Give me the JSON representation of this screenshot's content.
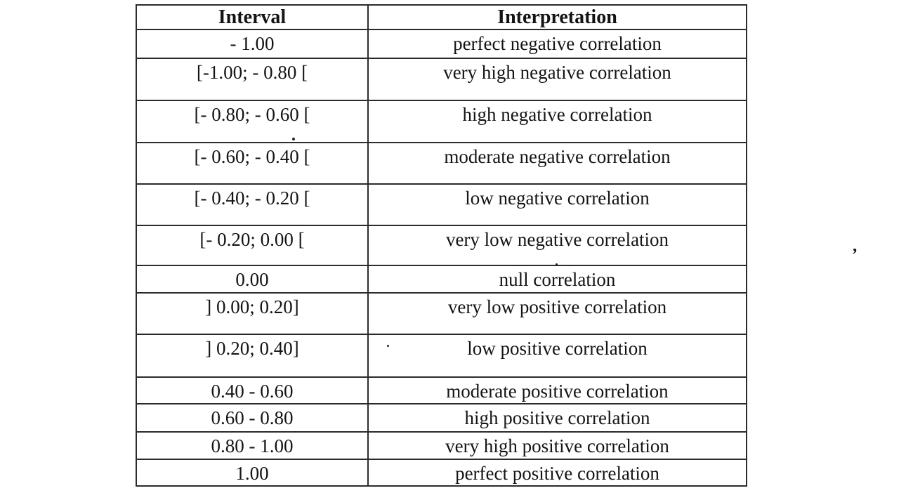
{
  "table": {
    "headers": [
      "Interval",
      "Interpretation"
    ],
    "rows": [
      {
        "interval": "- 1.00",
        "interpretation": "perfect negative correlation"
      },
      {
        "interval": "[-1.00; - 0.80 [",
        "interpretation": "very high negative correlation"
      },
      {
        "interval": "[- 0.80; - 0.60 [",
        "interpretation": "high negative correlation"
      },
      {
        "interval": "[- 0.60; - 0.40 [",
        "interpretation": "moderate negative correlation"
      },
      {
        "interval": "[- 0.40; - 0.20 [",
        "interpretation": "low negative correlation"
      },
      {
        "interval": "[- 0.20; 0.00 [",
        "interpretation": "very low negative correlation"
      },
      {
        "interval": "0.00",
        "interpretation": "null correlation"
      },
      {
        "interval": "] 0.00; 0.20]",
        "interpretation": "very low positive correlation"
      },
      {
        "interval": "] 0.20; 0.40]",
        "interpretation": "low positive correlation"
      },
      {
        "interval": "0.40 - 0.60",
        "interpretation": "moderate positive correlation"
      },
      {
        "interval": "0.60 - 0.80",
        "interpretation": "high positive correlation"
      },
      {
        "interval": "0.80 - 1.00",
        "interpretation": "very high positive correlation"
      },
      {
        "interval": "1.00",
        "interpretation": "perfect positive correlation"
      }
    ]
  },
  "artifacts": {
    "mark": "’"
  }
}
